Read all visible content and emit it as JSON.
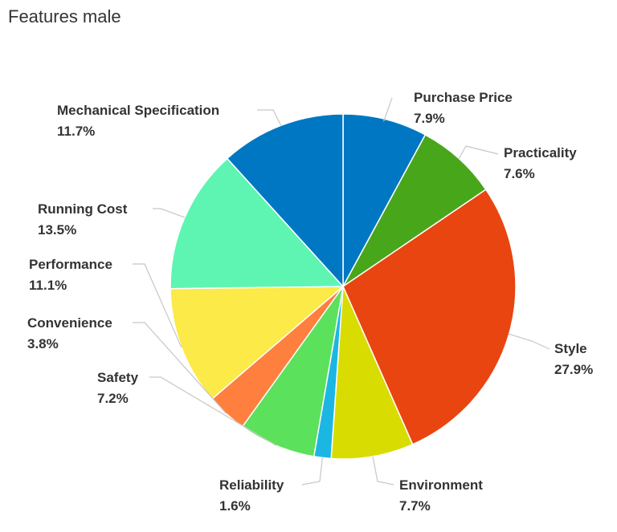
{
  "chart_data": {
    "type": "pie",
    "title": "Features male",
    "slices": [
      {
        "label": "Purchase Price",
        "value": 7.9,
        "display": "7.9%",
        "color": "#0077c3"
      },
      {
        "label": "Practicality",
        "value": 7.6,
        "display": "7.6%",
        "color": "#48a61b"
      },
      {
        "label": "Style",
        "value": 27.9,
        "display": "27.9%",
        "color": "#e84511"
      },
      {
        "label": "Environment",
        "value": 7.7,
        "display": "7.7%",
        "color": "#d9dc00"
      },
      {
        "label": "Reliability",
        "value": 1.6,
        "display": "1.6%",
        "color": "#1cb6e3"
      },
      {
        "label": "Safety",
        "value": 7.2,
        "display": "7.2%",
        "color": "#5be15b"
      },
      {
        "label": "Convenience",
        "value": 3.8,
        "display": "3.8%",
        "color": "#ff7f3e"
      },
      {
        "label": "Performance",
        "value": 11.1,
        "display": "11.1%",
        "color": "#fbea47"
      },
      {
        "label": "Running Cost",
        "value": 13.5,
        "display": "13.5%",
        "color": "#5ef5b3"
      },
      {
        "label": "Mechanical Specification",
        "value": 11.7,
        "display": "11.7%",
        "color": "#0077c3"
      }
    ]
  }
}
